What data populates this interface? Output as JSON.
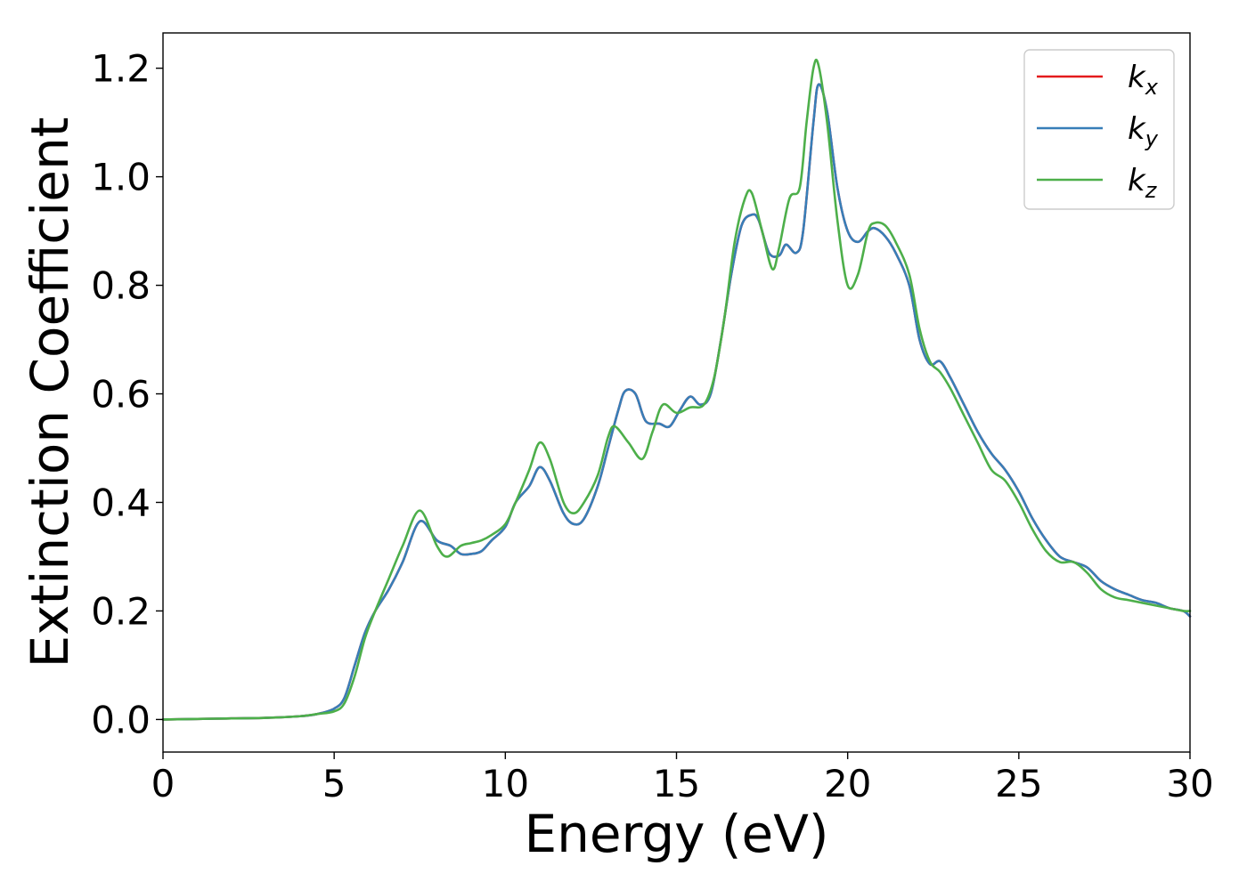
{
  "chart_data": {
    "type": "line",
    "title": "",
    "xlabel": "Energy (eV)",
    "ylabel": "Extinction Coefficient",
    "xlim": [
      0,
      30
    ],
    "ylim": [
      -0.06,
      1.265
    ],
    "xticks": [
      0,
      5,
      10,
      15,
      20,
      25,
      30
    ],
    "xtick_labels": [
      "0",
      "5",
      "10",
      "15",
      "20",
      "25",
      "30"
    ],
    "yticks": [
      0.0,
      0.2,
      0.4,
      0.6,
      0.8,
      1.0,
      1.2
    ],
    "ytick_labels": [
      "0.0",
      "0.2",
      "0.4",
      "0.6",
      "0.8",
      "1.0",
      "1.2"
    ],
    "grid": false,
    "legend": {
      "placement": "top-right",
      "entries": [
        {
          "base": "k",
          "sub": "x"
        },
        {
          "base": "k",
          "sub": "y"
        },
        {
          "base": "k",
          "sub": "z"
        }
      ]
    },
    "series": [
      {
        "name": "k_x",
        "color": "#e41a1c",
        "x": [
          0,
          1,
          2,
          3,
          4,
          4.5,
          5,
          5.3,
          5.6,
          5.9,
          6.2,
          6.6,
          7,
          7.5,
          8,
          8.4,
          8.7,
          9,
          9.3,
          9.6,
          10,
          10.3,
          10.7,
          11,
          11.3,
          11.7,
          12,
          12.3,
          12.7,
          13,
          13.3,
          13.5,
          13.8,
          14.1,
          14.5,
          14.8,
          15.1,
          15.4,
          15.7,
          16,
          16.3,
          16.6,
          16.9,
          17.2,
          17.4,
          17.7,
          18,
          18.2,
          18.5,
          18.7,
          19,
          19.15,
          19.4,
          19.7,
          20,
          20.3,
          20.6,
          20.8,
          21.1,
          21.4,
          21.8,
          22.1,
          22.4,
          22.7,
          23,
          23.4,
          23.8,
          24.2,
          24.6,
          25,
          25.4,
          25.8,
          26.2,
          26.6,
          27,
          27.4,
          27.8,
          28.2,
          28.6,
          29,
          29.4,
          29.8,
          30
        ],
        "y": [
          0.0,
          0.001,
          0.002,
          0.003,
          0.006,
          0.01,
          0.02,
          0.04,
          0.1,
          0.16,
          0.2,
          0.24,
          0.29,
          0.365,
          0.33,
          0.32,
          0.305,
          0.305,
          0.31,
          0.33,
          0.355,
          0.4,
          0.43,
          0.465,
          0.44,
          0.38,
          0.36,
          0.37,
          0.43,
          0.5,
          0.57,
          0.605,
          0.6,
          0.55,
          0.545,
          0.54,
          0.57,
          0.595,
          0.58,
          0.6,
          0.7,
          0.82,
          0.91,
          0.93,
          0.92,
          0.86,
          0.855,
          0.875,
          0.86,
          0.9,
          1.1,
          1.17,
          1.12,
          0.98,
          0.9,
          0.88,
          0.9,
          0.905,
          0.89,
          0.86,
          0.8,
          0.7,
          0.655,
          0.66,
          0.63,
          0.58,
          0.53,
          0.49,
          0.46,
          0.42,
          0.37,
          0.33,
          0.3,
          0.29,
          0.28,
          0.255,
          0.24,
          0.23,
          0.22,
          0.215,
          0.205,
          0.2,
          0.19
        ]
      },
      {
        "name": "k_y",
        "color": "#377eb8",
        "x": [
          0,
          1,
          2,
          3,
          4,
          4.5,
          5,
          5.3,
          5.6,
          5.9,
          6.2,
          6.6,
          7,
          7.5,
          8,
          8.4,
          8.7,
          9,
          9.3,
          9.6,
          10,
          10.3,
          10.7,
          11,
          11.3,
          11.7,
          12,
          12.3,
          12.7,
          13,
          13.3,
          13.5,
          13.8,
          14.1,
          14.5,
          14.8,
          15.1,
          15.4,
          15.7,
          16,
          16.3,
          16.6,
          16.9,
          17.2,
          17.4,
          17.7,
          18,
          18.2,
          18.5,
          18.7,
          19,
          19.15,
          19.4,
          19.7,
          20,
          20.3,
          20.6,
          20.8,
          21.1,
          21.4,
          21.8,
          22.1,
          22.4,
          22.7,
          23,
          23.4,
          23.8,
          24.2,
          24.6,
          25,
          25.4,
          25.8,
          26.2,
          26.6,
          27,
          27.4,
          27.8,
          28.2,
          28.6,
          29,
          29.4,
          29.8,
          30
        ],
        "y": [
          0.0,
          0.001,
          0.002,
          0.003,
          0.006,
          0.01,
          0.02,
          0.04,
          0.1,
          0.16,
          0.2,
          0.24,
          0.29,
          0.365,
          0.33,
          0.32,
          0.305,
          0.305,
          0.31,
          0.33,
          0.355,
          0.4,
          0.43,
          0.465,
          0.44,
          0.38,
          0.36,
          0.37,
          0.43,
          0.5,
          0.57,
          0.605,
          0.6,
          0.55,
          0.545,
          0.54,
          0.57,
          0.595,
          0.58,
          0.6,
          0.7,
          0.82,
          0.91,
          0.93,
          0.92,
          0.86,
          0.855,
          0.875,
          0.86,
          0.9,
          1.1,
          1.17,
          1.12,
          0.98,
          0.9,
          0.88,
          0.9,
          0.905,
          0.89,
          0.86,
          0.8,
          0.7,
          0.655,
          0.66,
          0.63,
          0.58,
          0.53,
          0.49,
          0.46,
          0.42,
          0.37,
          0.33,
          0.3,
          0.29,
          0.28,
          0.255,
          0.24,
          0.23,
          0.22,
          0.215,
          0.205,
          0.2,
          0.19
        ]
      },
      {
        "name": "k_z",
        "color": "#4daf4a",
        "x": [
          0,
          1,
          2,
          3,
          4,
          4.5,
          5,
          5.3,
          5.6,
          5.9,
          6.2,
          6.6,
          7,
          7.5,
          8,
          8.3,
          8.7,
          9,
          9.3,
          9.6,
          10,
          10.3,
          10.7,
          11,
          11.3,
          11.7,
          12,
          12.3,
          12.7,
          13,
          13.2,
          13.6,
          14,
          14.3,
          14.6,
          15,
          15.4,
          15.8,
          16.1,
          16.4,
          16.7,
          17,
          17.2,
          17.5,
          17.8,
          18,
          18.3,
          18.6,
          18.8,
          19,
          19.15,
          19.4,
          19.7,
          20,
          20.3,
          20.6,
          20.8,
          21.1,
          21.4,
          21.8,
          22.1,
          22.4,
          22.7,
          23,
          23.4,
          23.8,
          24.2,
          24.6,
          25,
          25.4,
          25.8,
          26.2,
          26.6,
          27,
          27.4,
          27.8,
          28.2,
          28.6,
          29,
          29.4,
          29.8,
          30
        ],
        "y": [
          0.0,
          0.001,
          0.002,
          0.003,
          0.006,
          0.01,
          0.015,
          0.03,
          0.08,
          0.15,
          0.2,
          0.26,
          0.32,
          0.385,
          0.32,
          0.3,
          0.32,
          0.325,
          0.33,
          0.34,
          0.36,
          0.4,
          0.46,
          0.51,
          0.48,
          0.4,
          0.38,
          0.4,
          0.45,
          0.52,
          0.54,
          0.51,
          0.48,
          0.53,
          0.58,
          0.565,
          0.575,
          0.58,
          0.63,
          0.74,
          0.88,
          0.96,
          0.97,
          0.9,
          0.83,
          0.87,
          0.96,
          0.98,
          1.1,
          1.2,
          1.205,
          1.1,
          0.92,
          0.8,
          0.82,
          0.9,
          0.915,
          0.91,
          0.88,
          0.82,
          0.72,
          0.66,
          0.64,
          0.61,
          0.56,
          0.51,
          0.46,
          0.44,
          0.4,
          0.35,
          0.31,
          0.29,
          0.29,
          0.27,
          0.24,
          0.225,
          0.22,
          0.215,
          0.21,
          0.205,
          0.2,
          0.2
        ]
      }
    ]
  }
}
